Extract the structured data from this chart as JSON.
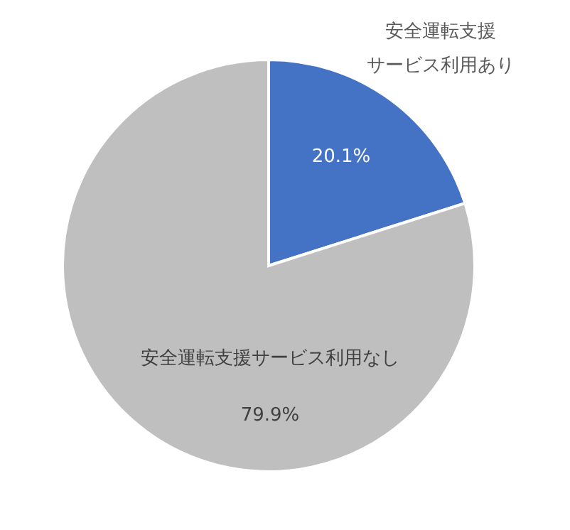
{
  "chart_data": {
    "type": "pie",
    "categories": [
      "安全運転支援サービス利用あり",
      "安全運転支援サービス利用なし"
    ],
    "values": [
      20.1,
      79.9
    ],
    "colors": [
      "#4472c4",
      "#bfbfbf"
    ],
    "value_labels": [
      "20.1%",
      "79.9%"
    ]
  }
}
